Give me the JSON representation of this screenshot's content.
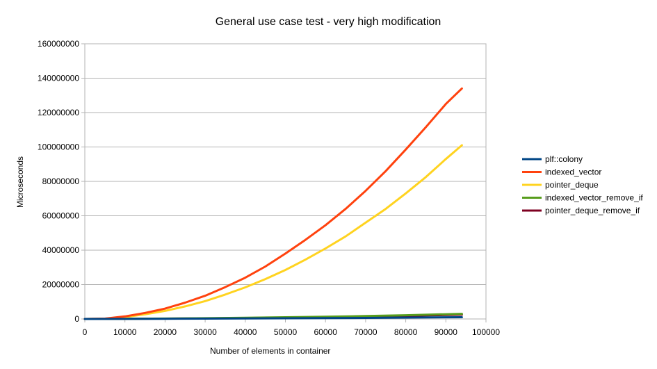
{
  "chart_data": {
    "type": "line",
    "title": "General use case test - very high modification",
    "xlabel": "Number of elements in container",
    "ylabel": "Microseconds",
    "xlim": [
      0,
      100000
    ],
    "ylim": [
      0,
      160000000
    ],
    "xticks": [
      0,
      10000,
      20000,
      30000,
      40000,
      50000,
      60000,
      70000,
      80000,
      90000,
      100000
    ],
    "yticks": [
      0,
      20000000,
      40000000,
      60000000,
      80000000,
      100000000,
      120000000,
      140000000,
      160000000
    ],
    "xtick_labels": [
      "0",
      "10000",
      "20000",
      "30000",
      "40000",
      "50000",
      "60000",
      "70000",
      "80000",
      "90000",
      "100000"
    ],
    "ytick_labels": [
      "0",
      "20000000",
      "40000000",
      "60000000",
      "80000000",
      "100000000",
      "120000000",
      "140000000",
      "160000000"
    ],
    "grid": "horizontal",
    "legend_position": "right",
    "series": [
      {
        "name": "plf::colony",
        "color": "#004586",
        "x": [
          0,
          10000,
          20000,
          30000,
          40000,
          50000,
          60000,
          70000,
          80000,
          94000
        ],
        "y": [
          0,
          50000,
          120000,
          200000,
          300000,
          400000,
          500000,
          600000,
          800000,
          1000000
        ]
      },
      {
        "name": "indexed_vector",
        "color": "#ff420e",
        "x": [
          0,
          5000,
          10000,
          15000,
          20000,
          25000,
          30000,
          35000,
          40000,
          45000,
          50000,
          55000,
          60000,
          65000,
          70000,
          75000,
          80000,
          85000,
          90000,
          94000
        ],
        "y": [
          0,
          200000,
          1500000,
          3500000,
          6000000,
          9500000,
          13500000,
          18500000,
          24000000,
          30500000,
          38000000,
          46000000,
          54500000,
          64000000,
          74500000,
          86000000,
          98500000,
          111500000,
          125000000,
          134000000
        ]
      },
      {
        "name": "pointer_deque",
        "color": "#ffd320",
        "x": [
          0,
          5000,
          10000,
          15000,
          20000,
          25000,
          30000,
          35000,
          40000,
          45000,
          50000,
          55000,
          60000,
          65000,
          70000,
          75000,
          80000,
          85000,
          90000,
          94000
        ],
        "y": [
          0,
          150000,
          1100000,
          2700000,
          4700000,
          7300000,
          10400000,
          14200000,
          18400000,
          23200000,
          28500000,
          34500000,
          41000000,
          48000000,
          56000000,
          64000000,
          73000000,
          82500000,
          93000000,
          101000000
        ]
      },
      {
        "name": "indexed_vector_remove_if",
        "color": "#579d1c",
        "x": [
          0,
          10000,
          20000,
          30000,
          40000,
          50000,
          60000,
          70000,
          80000,
          94000
        ],
        "y": [
          0,
          100000,
          250000,
          450000,
          700000,
          1000000,
          1300000,
          1700000,
          2200000,
          3000000
        ]
      },
      {
        "name": "pointer_deque_remove_if",
        "color": "#7e0021",
        "x": [
          0,
          10000,
          20000,
          30000,
          40000,
          50000,
          60000,
          70000,
          80000,
          94000
        ],
        "y": [
          0,
          80000,
          200000,
          350000,
          550000,
          800000,
          1050000,
          1400000,
          1800000,
          2500000
        ]
      }
    ]
  }
}
